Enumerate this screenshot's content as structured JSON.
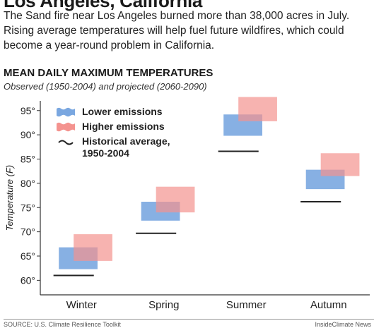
{
  "headline": "Los Angeles, California",
  "intro": "The Sand fire near Los Angeles burned more than 38,000 acres in July. Rising average temperatures will help fuel future wildfires, which could become a year-round problem in California.",
  "footer": {
    "source": "SOURCE: U.S. Climate Resilience Toolkit",
    "credit": "InsideClimate News"
  },
  "colors": {
    "lower": "#7aa7e0",
    "higher": "#f4938f",
    "historical": "#222222"
  },
  "chart_data": {
    "type": "range",
    "title": "MEAN DAILY MAXIMUM TEMPERATURES",
    "subtitle": "Observed (1950-2004) and projected (2060-2090)",
    "ylabel": "Temperature (F)",
    "ylim": [
      57,
      97
    ],
    "yticks": [
      60,
      65,
      70,
      75,
      80,
      85,
      90,
      95
    ],
    "ytick_suffix": "°",
    "grid": false,
    "legend_position": "top-left",
    "legend": [
      {
        "key": "lower",
        "label": "Lower emissions"
      },
      {
        "key": "higher",
        "label": "Higher emissions"
      },
      {
        "key": "historical",
        "label": "Historical average, 1950-2004"
      }
    ],
    "categories": [
      "Winter",
      "Spring",
      "Summer",
      "Autumn"
    ],
    "series": [
      {
        "name": "Lower emissions",
        "key": "lower",
        "ranges": [
          [
            62.3,
            66.8
          ],
          [
            72.3,
            76.2
          ],
          [
            89.8,
            94.2
          ],
          [
            78.8,
            82.8
          ]
        ]
      },
      {
        "name": "Higher emissions",
        "key": "higher",
        "ranges": [
          [
            64.0,
            69.5
          ],
          [
            74.0,
            79.3
          ],
          [
            92.8,
            97.8
          ],
          [
            81.5,
            86.2
          ]
        ]
      },
      {
        "name": "Historical average, 1950-2004",
        "key": "historical",
        "values": [
          61.0,
          69.7,
          86.6,
          76.2
        ]
      }
    ]
  }
}
